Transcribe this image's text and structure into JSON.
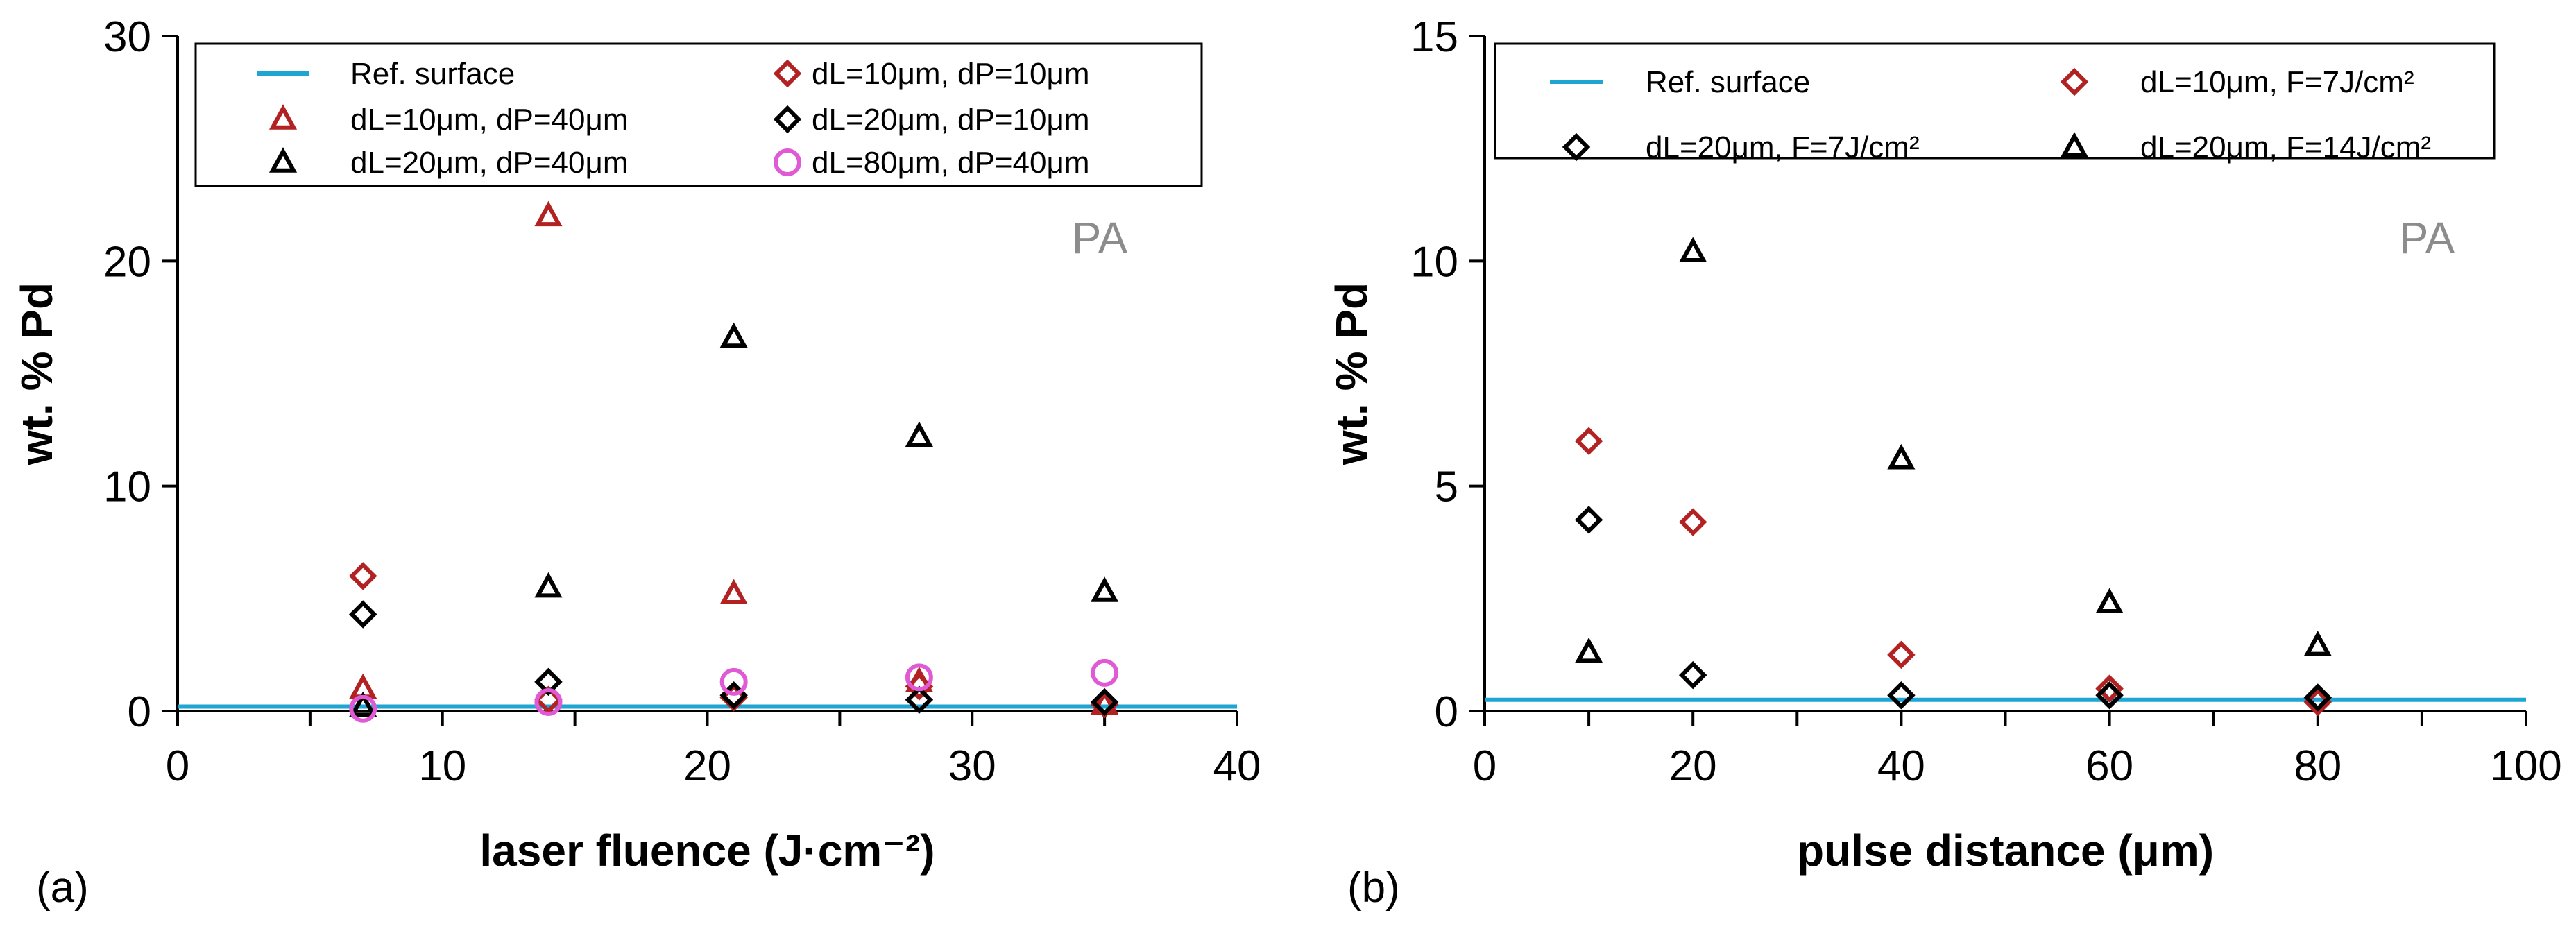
{
  "colors": {
    "ref": "#1ea5d2",
    "red": "#b22222",
    "black": "#000000",
    "pink": "#e05ad6",
    "pa_text": "#8c8c8c",
    "axis": "#000000"
  },
  "chart_data": [
    {
      "id": "a",
      "type": "scatter",
      "panel_label": "(a)",
      "annotation": "PA",
      "xlabel": "laser fluence (J·cm⁻²)",
      "ylabel": "wt. % Pd",
      "xlim": [
        0,
        40
      ],
      "ylim": [
        0,
        30
      ],
      "xticks": [
        0,
        10,
        20,
        30,
        40
      ],
      "xtick_labels": [
        "0",
        "10",
        "20",
        "30",
        "40"
      ],
      "yticks": [
        0,
        10,
        20,
        30
      ],
      "ytick_labels": [
        "0",
        "10",
        "20",
        "30"
      ],
      "x_minor_ticks": [
        5,
        15,
        25,
        35
      ],
      "grid": false,
      "legend_position": "top",
      "legend": [
        {
          "label": "Ref. surface",
          "marker": "line",
          "color": "#1ea5d2",
          "col": 0,
          "row": 0
        },
        {
          "label": "dL=10μm, dP=40μm",
          "marker": "triangle",
          "color": "#b22222",
          "col": 0,
          "row": 1
        },
        {
          "label": "dL=20μm, dP=40μm",
          "marker": "triangle",
          "color": "#000000",
          "col": 0,
          "row": 2
        },
        {
          "label": "dL=10μm, dP=10μm",
          "marker": "diamond",
          "color": "#b22222",
          "col": 1,
          "row": 0
        },
        {
          "label": "dL=20μm, dP=10μm",
          "marker": "diamond",
          "color": "#000000",
          "col": 1,
          "row": 1
        },
        {
          "label": "dL=80μm, dP=40μm",
          "marker": "circle",
          "color": "#e05ad6",
          "col": 1,
          "row": 2
        }
      ],
      "ref_line": {
        "name": "Ref. surface",
        "y": 0.2,
        "color": "#1ea5d2"
      },
      "series": [
        {
          "name": "dL=10μm, dP=40μm",
          "marker": "triangle",
          "color": "#b22222",
          "x": [
            7,
            14,
            21,
            28,
            35
          ],
          "y": [
            1.0,
            22.0,
            5.2,
            1.3,
            0.3
          ]
        },
        {
          "name": "dL=20μm, dP=40μm",
          "marker": "triangle",
          "color": "#000000",
          "x": [
            7,
            14,
            21,
            28,
            35
          ],
          "y": [
            0.2,
            5.5,
            16.6,
            12.2,
            5.3
          ]
        },
        {
          "name": "dL=10μm, dP=10μm",
          "marker": "diamond",
          "color": "#b22222",
          "x": [
            7,
            14,
            21,
            28,
            35
          ],
          "y": [
            6.0,
            0.5,
            0.6,
            1.1,
            0.3
          ]
        },
        {
          "name": "dL=20μm, dP=10μm",
          "marker": "diamond",
          "color": "#000000",
          "x": [
            7,
            14,
            21,
            28,
            35
          ],
          "y": [
            4.3,
            1.3,
            0.7,
            0.5,
            0.4
          ]
        },
        {
          "name": "dL=80μm, dP=40μm",
          "marker": "circle",
          "color": "#e05ad6",
          "x": [
            7,
            14,
            21,
            28,
            35
          ],
          "y": [
            0.1,
            0.4,
            1.3,
            1.5,
            1.7
          ]
        }
      ]
    },
    {
      "id": "b",
      "type": "scatter",
      "panel_label": "(b)",
      "annotation": "PA",
      "xlabel": "pulse distance (μm)",
      "ylabel": "wt. % Pd",
      "xlim": [
        0,
        100
      ],
      "ylim": [
        0,
        15
      ],
      "xticks": [
        0,
        20,
        40,
        60,
        80,
        100
      ],
      "xtick_labels": [
        "0",
        "20",
        "40",
        "60",
        "80",
        "100"
      ],
      "yticks": [
        0,
        5,
        10,
        15
      ],
      "ytick_labels": [
        "0",
        "5",
        "10",
        "15"
      ],
      "x_minor_ticks": [
        10,
        30,
        50,
        70,
        90
      ],
      "grid": false,
      "legend_position": "top",
      "legend": [
        {
          "label": "Ref. surface",
          "marker": "line",
          "color": "#1ea5d2",
          "col": 0,
          "row": 0
        },
        {
          "label": "dL=20μm, F=7J/cm²",
          "marker": "diamond",
          "color": "#000000",
          "col": 0,
          "row": 1
        },
        {
          "label": "dL=10μm, F=7J/cm²",
          "marker": "diamond",
          "color": "#b22222",
          "col": 1,
          "row": 0
        },
        {
          "label": "dL=20μm, F=14J/cm²",
          "marker": "triangle",
          "color": "#000000",
          "col": 1,
          "row": 1
        }
      ],
      "ref_line": {
        "name": "Ref. surface",
        "y": 0.25,
        "color": "#1ea5d2"
      },
      "series": [
        {
          "name": "dL=10μm, F=7J/cm²",
          "marker": "diamond",
          "color": "#b22222",
          "x": [
            10,
            20,
            40,
            60,
            80
          ],
          "y": [
            6.0,
            4.2,
            1.25,
            0.5,
            0.2
          ]
        },
        {
          "name": "dL=20μm, F=7J/cm²",
          "marker": "diamond",
          "color": "#000000",
          "x": [
            10,
            20,
            40,
            60,
            80
          ],
          "y": [
            4.25,
            0.8,
            0.35,
            0.35,
            0.3
          ]
        },
        {
          "name": "dL=20μm, F=14J/cm²",
          "marker": "triangle",
          "color": "#000000",
          "x": [
            10,
            20,
            40,
            60,
            80
          ],
          "y": [
            1.3,
            10.2,
            5.6,
            2.4,
            1.45
          ]
        }
      ]
    }
  ]
}
